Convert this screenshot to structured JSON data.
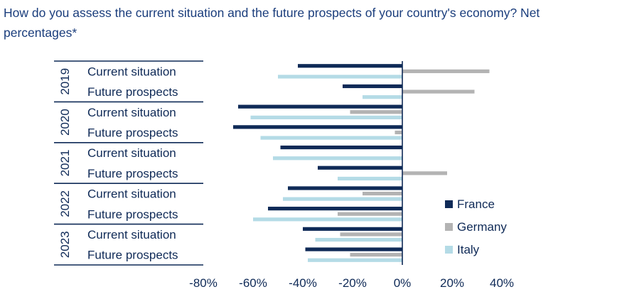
{
  "title": "How do you assess the current situation and the future prospects of your country's economy? Net percentages*",
  "colors": {
    "France": "#0f2a57",
    "Germany": "#b3b3b3",
    "Italy": "#b4dbe6",
    "text": "#0f2a57",
    "rule": "#0f2a57"
  },
  "chart_data": {
    "type": "bar",
    "orientation": "horizontal",
    "groups": [
      {
        "year": "2019",
        "categories": [
          "Current situation",
          "Future prospects"
        ]
      },
      {
        "year": "2020",
        "categories": [
          "Current situation",
          "Future prospects"
        ]
      },
      {
        "year": "2021",
        "categories": [
          "Current situation",
          "Future prospects"
        ]
      },
      {
        "year": "2022",
        "categories": [
          "Current situation",
          "Future prospects"
        ]
      },
      {
        "year": "2023",
        "categories": [
          "Current situation",
          "Future prospects"
        ]
      }
    ],
    "series": [
      {
        "name": "France",
        "values": [
          -42,
          -24,
          -66,
          -68,
          -49,
          -34,
          -46,
          -54,
          -40,
          -39
        ]
      },
      {
        "name": "Germany",
        "values": [
          35,
          29,
          -21,
          -3,
          0,
          18,
          -16,
          -26,
          -25,
          -21
        ]
      },
      {
        "name": "Italy",
        "values": [
          -50,
          -16,
          -61,
          -57,
          -52,
          -26,
          -48,
          -60,
          -35,
          -38
        ]
      }
    ],
    "xlim": [
      -80,
      40
    ],
    "xticks": [
      "-80%",
      "-60%",
      "-40%",
      "-20%",
      "0%",
      "20%",
      "40%"
    ],
    "legend_position": "right"
  }
}
